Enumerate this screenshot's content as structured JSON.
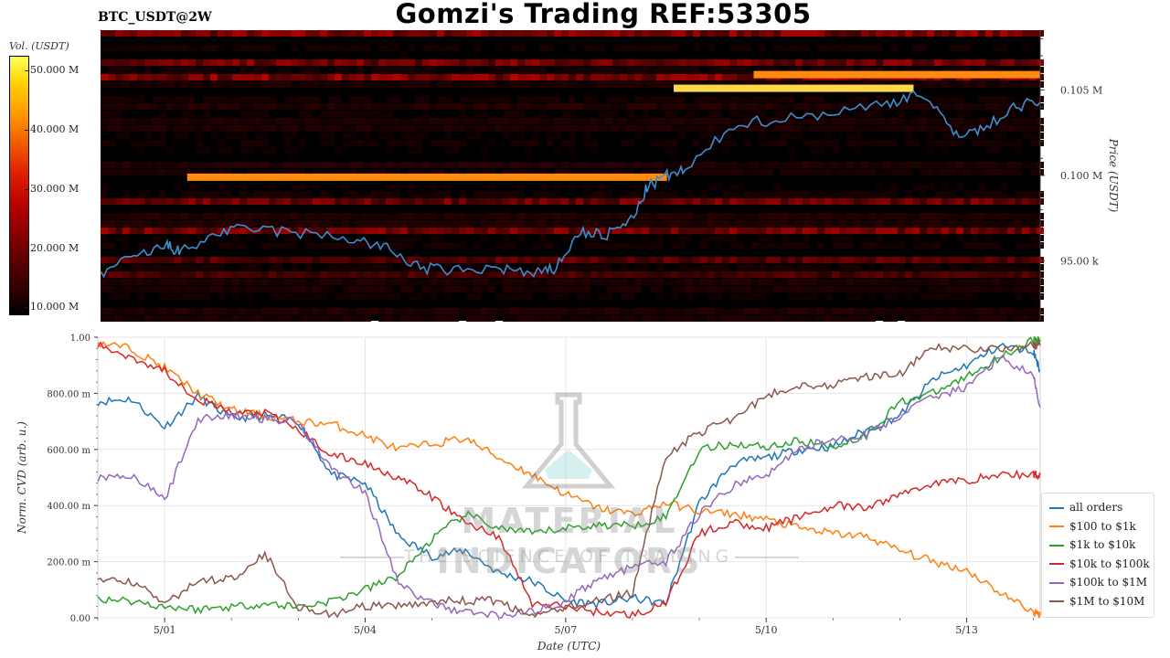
{
  "header": {
    "title": "Gomzi's Trading REF:53305",
    "symbol": "BTC_USDT@2W"
  },
  "colorbar": {
    "label": "Vol. (USDT)",
    "ticks": [
      "50.000 M",
      "40.000 M",
      "30.000 M",
      "20.000 M",
      "10.000 M"
    ]
  },
  "watermark": {
    "main": "MATERIAL INDICATORS",
    "sub": "THE SCIENCE OF TRADING"
  },
  "chart_data": [
    {
      "type": "heatmap",
      "title": "BTC_USDT@2W",
      "ylabel": "Price (USDT)",
      "y_ticks": [
        "95.00 k",
        "0.100 M",
        "0.105 M"
      ],
      "y_tick_values": [
        95000,
        100000,
        105000
      ],
      "ylim": [
        91500,
        108500
      ],
      "color_scale_label": "Vol. (USDT)",
      "color_scale_range": [
        0,
        55000000
      ],
      "price_line": {
        "name": "price",
        "color": "#3a8fd0",
        "x_days": [
          0,
          0.5,
          1,
          1.2,
          1.8,
          2.3,
          3.0,
          3.8,
          4.3,
          4.8,
          5.3,
          6.0,
          6.5,
          6.8,
          7.2,
          7.6,
          8.0,
          8.2,
          8.5,
          8.8,
          9.5,
          10.2,
          11.0,
          11.8,
          12.3,
          12.8,
          13.2,
          13.7,
          14.1
        ],
        "y": [
          94300,
          95200,
          95900,
          95500,
          96700,
          96900,
          96600,
          96300,
          95700,
          94600,
          94400,
          94600,
          94200,
          94500,
          96700,
          96500,
          97500,
          99300,
          100000,
          100300,
          103000,
          103300,
          103700,
          104200,
          104900,
          102500,
          102600,
          104000,
          104300
        ]
      },
      "bright_bands": [
        {
          "label": "wall near 99.9k",
          "price": 99900,
          "x_range_days": [
            1.3,
            8.5
          ],
          "intensity": "orange"
        },
        {
          "label": "wall near 105.1k",
          "price": 105100,
          "x_range_days": [
            8.6,
            12.2
          ],
          "intensity": "yellow"
        },
        {
          "label": "wall near 105.9k",
          "price": 105900,
          "x_range_days": [
            9.8,
            14.1
          ],
          "intensity": "orange"
        }
      ]
    },
    {
      "type": "line",
      "xlabel": "Date (UTC)",
      "ylabel": "Norm. CVD (arb. u.)",
      "x_ticks": [
        "5/01",
        "5/04",
        "5/07",
        "5/10",
        "5/13"
      ],
      "x_tick_days": [
        1,
        4,
        7,
        10,
        13
      ],
      "xlim_days": [
        0,
        14.1
      ],
      "y_ticks": [
        "0.00",
        "200.00 m",
        "400.00 m",
        "600.00 m",
        "800.00 m",
        "1.00"
      ],
      "ylim": [
        0,
        1
      ],
      "grid": true,
      "legend_position": "bottom-right",
      "x": [
        0,
        0.5,
        1.0,
        1.5,
        2.0,
        2.5,
        3.0,
        3.5,
        4.0,
        4.5,
        5.0,
        5.5,
        6.0,
        6.5,
        7.0,
        7.5,
        8.0,
        8.5,
        9.0,
        9.5,
        10.0,
        10.5,
        11.0,
        11.5,
        12.0,
        12.5,
        13.0,
        13.5,
        14.0,
        14.1
      ],
      "series": [
        {
          "name": "all orders",
          "color": "#1f77b4",
          "values": [
            0.77,
            0.78,
            0.68,
            0.79,
            0.71,
            0.72,
            0.7,
            0.51,
            0.48,
            0.29,
            0.22,
            0.24,
            0.16,
            0.13,
            0.06,
            0.05,
            0.07,
            0.05,
            0.41,
            0.55,
            0.57,
            0.6,
            0.61,
            0.67,
            0.72,
            0.85,
            0.9,
            0.97,
            0.95,
            0.88
          ]
        },
        {
          "name": "$100 to $1k",
          "color": "#ff7f0e",
          "values": [
            0.98,
            0.96,
            0.89,
            0.8,
            0.74,
            0.72,
            0.7,
            0.69,
            0.65,
            0.6,
            0.62,
            0.64,
            0.57,
            0.51,
            0.44,
            0.39,
            0.37,
            0.41,
            0.38,
            0.37,
            0.35,
            0.32,
            0.3,
            0.29,
            0.24,
            0.2,
            0.17,
            0.09,
            0.02,
            0.01
          ]
        },
        {
          "name": "$1k to $10k",
          "color": "#2ca02c",
          "values": [
            0.07,
            0.06,
            0.04,
            0.03,
            0.04,
            0.05,
            0.04,
            0.06,
            0.1,
            0.15,
            0.28,
            0.37,
            0.32,
            0.3,
            0.32,
            0.33,
            0.33,
            0.36,
            0.6,
            0.62,
            0.61,
            0.63,
            0.61,
            0.65,
            0.77,
            0.8,
            0.86,
            0.93,
            0.99,
            0.99
          ]
        },
        {
          "name": "$10k to $100k",
          "color": "#d62728",
          "values": [
            0.97,
            0.93,
            0.88,
            0.78,
            0.73,
            0.73,
            0.67,
            0.58,
            0.55,
            0.5,
            0.43,
            0.34,
            0.29,
            0.05,
            0.04,
            0.02,
            0.01,
            0.05,
            0.3,
            0.34,
            0.32,
            0.36,
            0.4,
            0.39,
            0.44,
            0.48,
            0.49,
            0.51,
            0.51,
            0.51
          ]
        },
        {
          "name": "$100k to $1M",
          "color": "#9467bd",
          "values": [
            0.5,
            0.51,
            0.42,
            0.71,
            0.72,
            0.71,
            0.7,
            0.53,
            0.45,
            0.12,
            0.05,
            0.02,
            0.01,
            0.02,
            0.06,
            0.14,
            0.18,
            0.2,
            0.37,
            0.47,
            0.51,
            0.6,
            0.64,
            0.65,
            0.72,
            0.79,
            0.82,
            0.93,
            0.86,
            0.75
          ]
        },
        {
          "name": "$1M to $10M",
          "color": "#8c564b",
          "values": [
            0.13,
            0.13,
            0.05,
            0.13,
            0.14,
            0.23,
            0.04,
            0.01,
            0.04,
            0.04,
            0.06,
            0.06,
            0.06,
            0.0,
            0.04,
            0.06,
            0.09,
            0.58,
            0.66,
            0.71,
            0.79,
            0.83,
            0.83,
            0.86,
            0.87,
            0.96,
            0.96,
            0.96,
            0.97,
            0.97
          ]
        }
      ]
    }
  ]
}
